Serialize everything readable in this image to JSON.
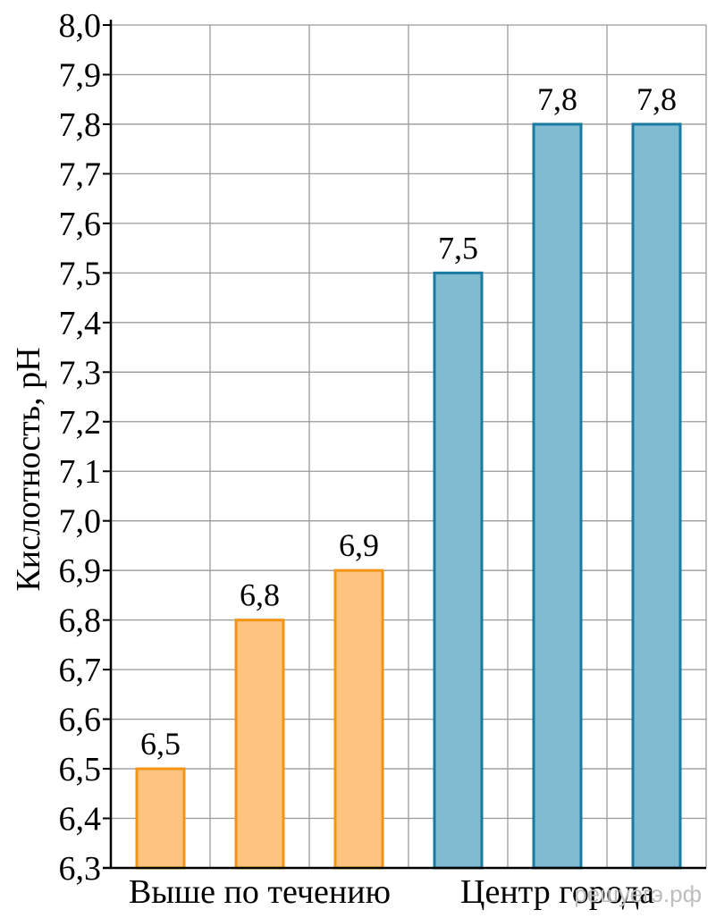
{
  "chart_data": {
    "type": "bar",
    "ylabel": "Кислотность, pH",
    "ylim": [
      6.3,
      8.0
    ],
    "ytick_step": 0.1,
    "decimal_separator": ",",
    "grid": true,
    "values": [
      6.5,
      6.8,
      6.9,
      7.5,
      7.8,
      7.8
    ],
    "data_labels": [
      "6,5",
      "6,8",
      "6,9",
      "7,5",
      "7,8",
      "7,8"
    ],
    "bar_groups": [
      0,
      0,
      0,
      1,
      1,
      1
    ],
    "groups": [
      {
        "label": "Выше по течению",
        "fill": "#fcc47f",
        "stroke": "#f39415"
      },
      {
        "label": "Центр города",
        "fill": "#7fbcd2",
        "stroke": "#1a7aa0"
      }
    ]
  },
  "watermark": "решуегэ.рф"
}
